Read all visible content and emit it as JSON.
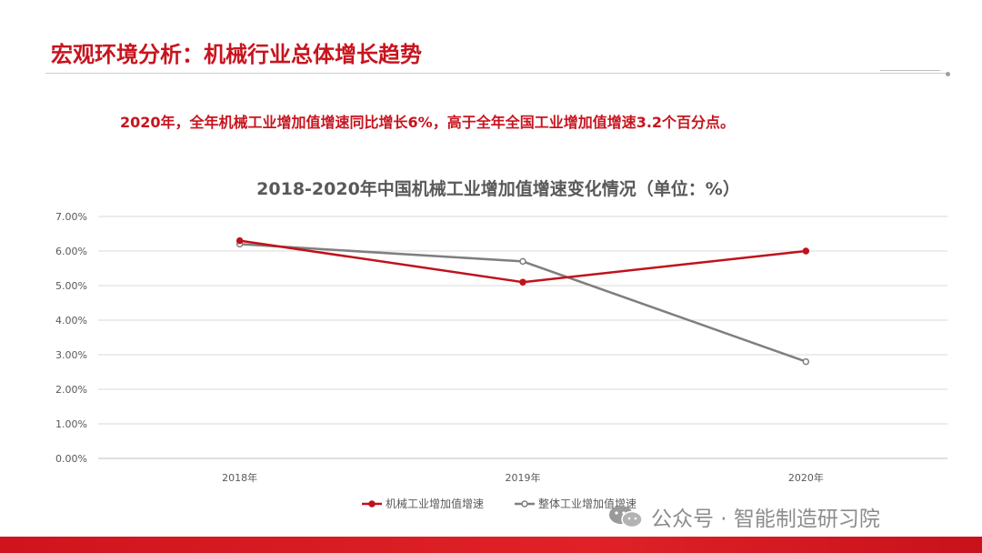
{
  "page": {
    "title": "宏观环境分析：机械行业总体增长趋势",
    "summary": "2020年，全年机械工业增加值增速同比增长6%，高于全年全国工业增加值增速3.2个百分点。",
    "watermark": "公众号 · 智能制造研习院",
    "watermark_icon": "wechat-icon"
  },
  "colors": {
    "accent": "#c8141e",
    "series_machinery": "#c0121c",
    "series_overall": "#7f7f7f"
  },
  "chart_data": {
    "type": "line",
    "title": "2018-2020年中国机械工业增加值增速变化情况（单位：%）",
    "categories": [
      "2018年",
      "2019年",
      "2020年"
    ],
    "series": [
      {
        "name": "机械工业增加值增速",
        "values": [
          6.3,
          5.1,
          6.0
        ],
        "color": "#c0121c"
      },
      {
        "name": "整体工业增加值增速",
        "values": [
          6.2,
          5.7,
          2.8
        ],
        "color": "#7f7f7f"
      }
    ],
    "yticks": [
      "0.00%",
      "1.00%",
      "2.00%",
      "3.00%",
      "4.00%",
      "5.00%",
      "6.00%",
      "7.00%"
    ],
    "ylim": [
      0,
      7
    ],
    "grid": true,
    "legend_position": "bottom"
  }
}
